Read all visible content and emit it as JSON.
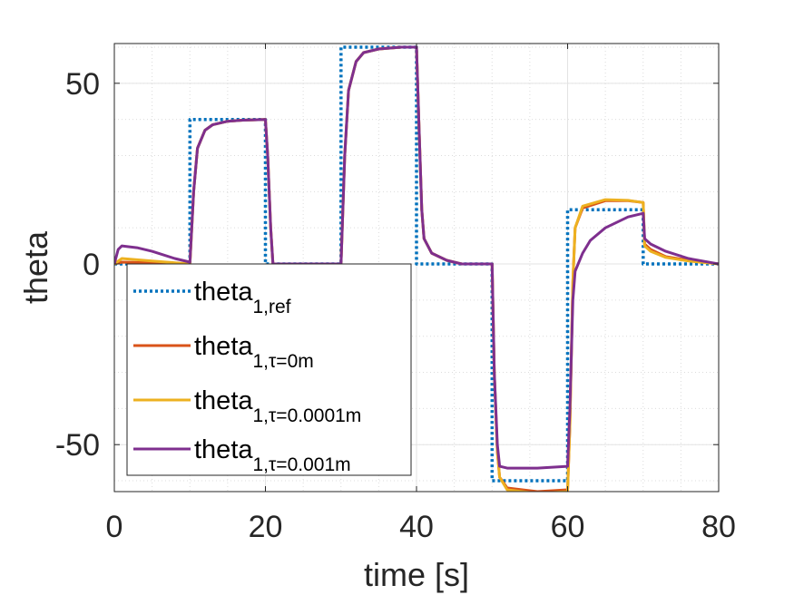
{
  "chart_data": {
    "type": "line",
    "xlabel": "time [s]",
    "ylabel": "theta",
    "xlim": [
      0,
      80
    ],
    "ylim": [
      -63,
      61
    ],
    "xticks": [
      0,
      20,
      40,
      60,
      80
    ],
    "xtick_labels": [
      "0",
      "20",
      "40",
      "60",
      "80"
    ],
    "yticks": [
      -50,
      0,
      50
    ],
    "ytick_labels": [
      "-50",
      "0",
      "50"
    ],
    "grid": true,
    "minor_grid": true,
    "legend_position": "bottom-left",
    "series": [
      {
        "legend_main": "theta",
        "legend_sub": "1,ref",
        "color": "#0072BD",
        "style": "dotted",
        "x": [
          0,
          10,
          10,
          20,
          20,
          30,
          30,
          40,
          40,
          50,
          50,
          60,
          60,
          70,
          70,
          80
        ],
        "y": [
          0,
          0,
          40,
          40,
          0,
          0,
          60,
          60,
          0,
          0,
          -60,
          -60,
          15,
          15,
          0,
          0
        ]
      },
      {
        "legend_main": "theta",
        "legend_sub": "1,τ=0m",
        "color": "#D95319",
        "style": "solid",
        "x": [
          0,
          1,
          5,
          10,
          10.5,
          11,
          12,
          13,
          15,
          17,
          20,
          20.3,
          20.7,
          21,
          30,
          30.5,
          31,
          32,
          33,
          35,
          38,
          40,
          40.3,
          40.7,
          41,
          42,
          44,
          46,
          50,
          50.3,
          50.7,
          51,
          52,
          56,
          60,
          60.3,
          60.7,
          61,
          62,
          65,
          68,
          70,
          70.2,
          71,
          73,
          76,
          80
        ],
        "y": [
          0,
          0.5,
          0.3,
          0,
          20,
          32,
          37,
          38.5,
          39.5,
          39.8,
          40,
          30,
          10,
          0,
          0,
          30,
          48,
          56,
          58.5,
          59.5,
          60,
          60,
          40,
          15,
          7,
          3,
          1,
          0,
          0,
          -30,
          -52,
          -59,
          -62,
          -63,
          -62.5,
          -45,
          -5,
          10,
          15.5,
          17.5,
          17.5,
          17,
          5.5,
          4,
          2,
          1,
          0
        ]
      },
      {
        "legend_main": "theta",
        "legend_sub": "1,τ=0.0001m",
        "color": "#EDB120",
        "style": "solid",
        "x": [
          0,
          1,
          5,
          10,
          10.5,
          11,
          12,
          13,
          15,
          17,
          20,
          20.3,
          20.7,
          21,
          30,
          30.5,
          31,
          32,
          33,
          35,
          38,
          40,
          40.3,
          40.7,
          41,
          42,
          44,
          46,
          50,
          50.3,
          50.7,
          51,
          52,
          56,
          60,
          60.3,
          60.7,
          61,
          62,
          65,
          68,
          70,
          70.2,
          71,
          73,
          76,
          80
        ],
        "y": [
          0,
          1.5,
          0.8,
          0,
          20,
          32,
          37,
          38.5,
          39.5,
          39.8,
          40,
          30,
          10,
          0,
          0,
          30,
          48,
          56,
          58.5,
          59.5,
          60,
          60,
          40,
          15,
          7,
          3,
          1,
          0,
          0,
          -30,
          -52,
          -59,
          -62.5,
          -63.5,
          -63,
          -45,
          -5,
          10,
          16,
          17.8,
          17.6,
          17,
          5,
          3.5,
          1.8,
          0.8,
          0
        ]
      },
      {
        "legend_main": "theta",
        "legend_sub": "1,τ=0.001m",
        "color": "#7E2F8E",
        "style": "solid",
        "x": [
          0,
          0.5,
          1,
          3,
          5,
          8,
          10,
          10.5,
          11,
          12,
          13,
          15,
          17,
          20,
          20.3,
          20.7,
          21,
          30,
          30.5,
          31,
          32,
          33,
          35,
          38,
          40,
          40.3,
          40.7,
          41,
          42,
          44,
          46,
          50,
          50.3,
          50.7,
          51,
          52,
          56,
          60,
          60.3,
          60.7,
          61,
          62,
          63,
          65,
          68,
          70,
          70.2,
          71,
          73,
          76,
          80
        ],
        "y": [
          0,
          4,
          5,
          4.5,
          3.5,
          1.5,
          0.5,
          20,
          32,
          37,
          38.5,
          39.5,
          39.8,
          40,
          30,
          10,
          0,
          0,
          30,
          48,
          56,
          58.5,
          59.5,
          60,
          60,
          40,
          15,
          7,
          3,
          1,
          0,
          0,
          -30,
          -50,
          -56,
          -56.5,
          -56.5,
          -56,
          -40,
          -10,
          -2,
          3,
          6.5,
          10,
          13,
          14,
          7,
          5.5,
          3.5,
          1.5,
          0
        ]
      }
    ]
  }
}
